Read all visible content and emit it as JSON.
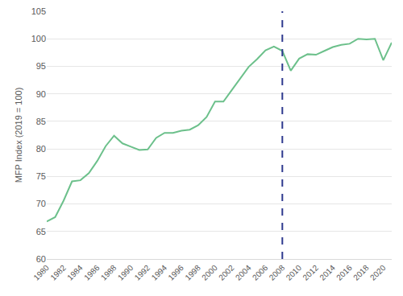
{
  "chart_data": {
    "type": "line",
    "y_label": "MFP Index (2019 = 100)",
    "x": [
      1980,
      1981,
      1982,
      1983,
      1984,
      1985,
      1986,
      1987,
      1988,
      1989,
      1990,
      1991,
      1992,
      1993,
      1994,
      1995,
      1996,
      1997,
      1998,
      1999,
      2000,
      2001,
      2002,
      2003,
      2004,
      2005,
      2006,
      2007,
      2008,
      2009,
      2010,
      2011,
      2012,
      2013,
      2014,
      2015,
      2016,
      2017,
      2018,
      2019,
      2020,
      2021
    ],
    "values": [
      66.8,
      67.6,
      70.6,
      74.1,
      74.3,
      75.6,
      77.8,
      80.5,
      82.4,
      81.0,
      80.4,
      79.8,
      79.9,
      82.0,
      82.9,
      82.9,
      83.3,
      83.5,
      84.3,
      85.8,
      88.6,
      88.6,
      90.7,
      92.8,
      94.9,
      96.3,
      97.9,
      98.6,
      97.8,
      94.2,
      96.4,
      97.2,
      97.1,
      97.8,
      98.5,
      98.9,
      99.1,
      100.0,
      99.9,
      100.0,
      96.1,
      99.3
    ],
    "color": "#6cc08b",
    "xlim": [
      1980,
      2021
    ],
    "xticks": [
      1980,
      1982,
      1984,
      1986,
      1988,
      1990,
      1992,
      1994,
      1996,
      1998,
      2000,
      2002,
      2004,
      2006,
      2008,
      2010,
      2012,
      2014,
      2016,
      2018,
      2020
    ],
    "ylim": [
      60,
      105
    ],
    "yticks": [
      60,
      65,
      70,
      75,
      80,
      85,
      90,
      95,
      100,
      105
    ],
    "grid": true,
    "reference_line": {
      "x": 2008,
      "color": "#2f3a8f",
      "line_style": "dash"
    }
  }
}
